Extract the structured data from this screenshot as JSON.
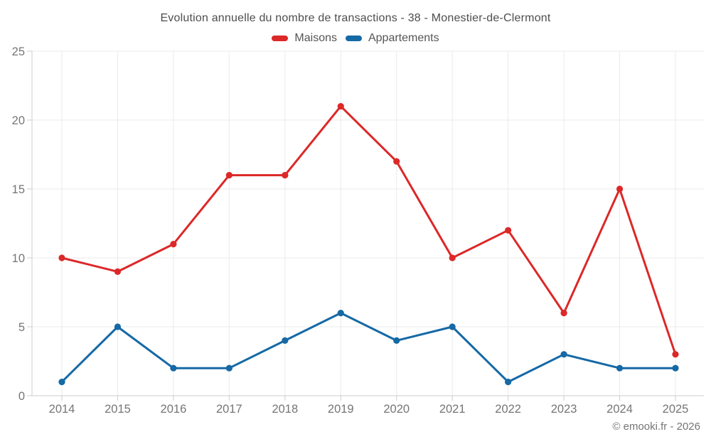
{
  "header": {
    "title": "Evolution annuelle du nombre de transactions - 38 - Monestier-de-Clermont"
  },
  "footer": {
    "credit": "© emooki.fr - 2026"
  },
  "chart_data": {
    "type": "line",
    "title": "Evolution annuelle du nombre de transactions - 38 - Monestier-de-Clermont",
    "categories": [
      "2014",
      "2015",
      "2016",
      "2017",
      "2018",
      "2019",
      "2020",
      "2021",
      "2022",
      "2023",
      "2024",
      "2025"
    ],
    "series": [
      {
        "name": "Maisons",
        "color": "#dc2828",
        "values": [
          10,
          9,
          11,
          16,
          16,
          21,
          17,
          10,
          12,
          6,
          15,
          3
        ]
      },
      {
        "name": "Appartements",
        "color": "#1569a5",
        "values": [
          1,
          5,
          2,
          2,
          4,
          6,
          4,
          5,
          1,
          3,
          2,
          2
        ]
      }
    ],
    "xlabel": "",
    "ylabel": "",
    "ylim": [
      0,
      25
    ],
    "yticks": [
      0,
      5,
      10,
      15,
      20,
      25
    ],
    "grid": true,
    "legend_position": "top",
    "colors": {
      "grid": "#ebebeb",
      "axis": "#cccccc",
      "tick_label": "#757575"
    }
  }
}
